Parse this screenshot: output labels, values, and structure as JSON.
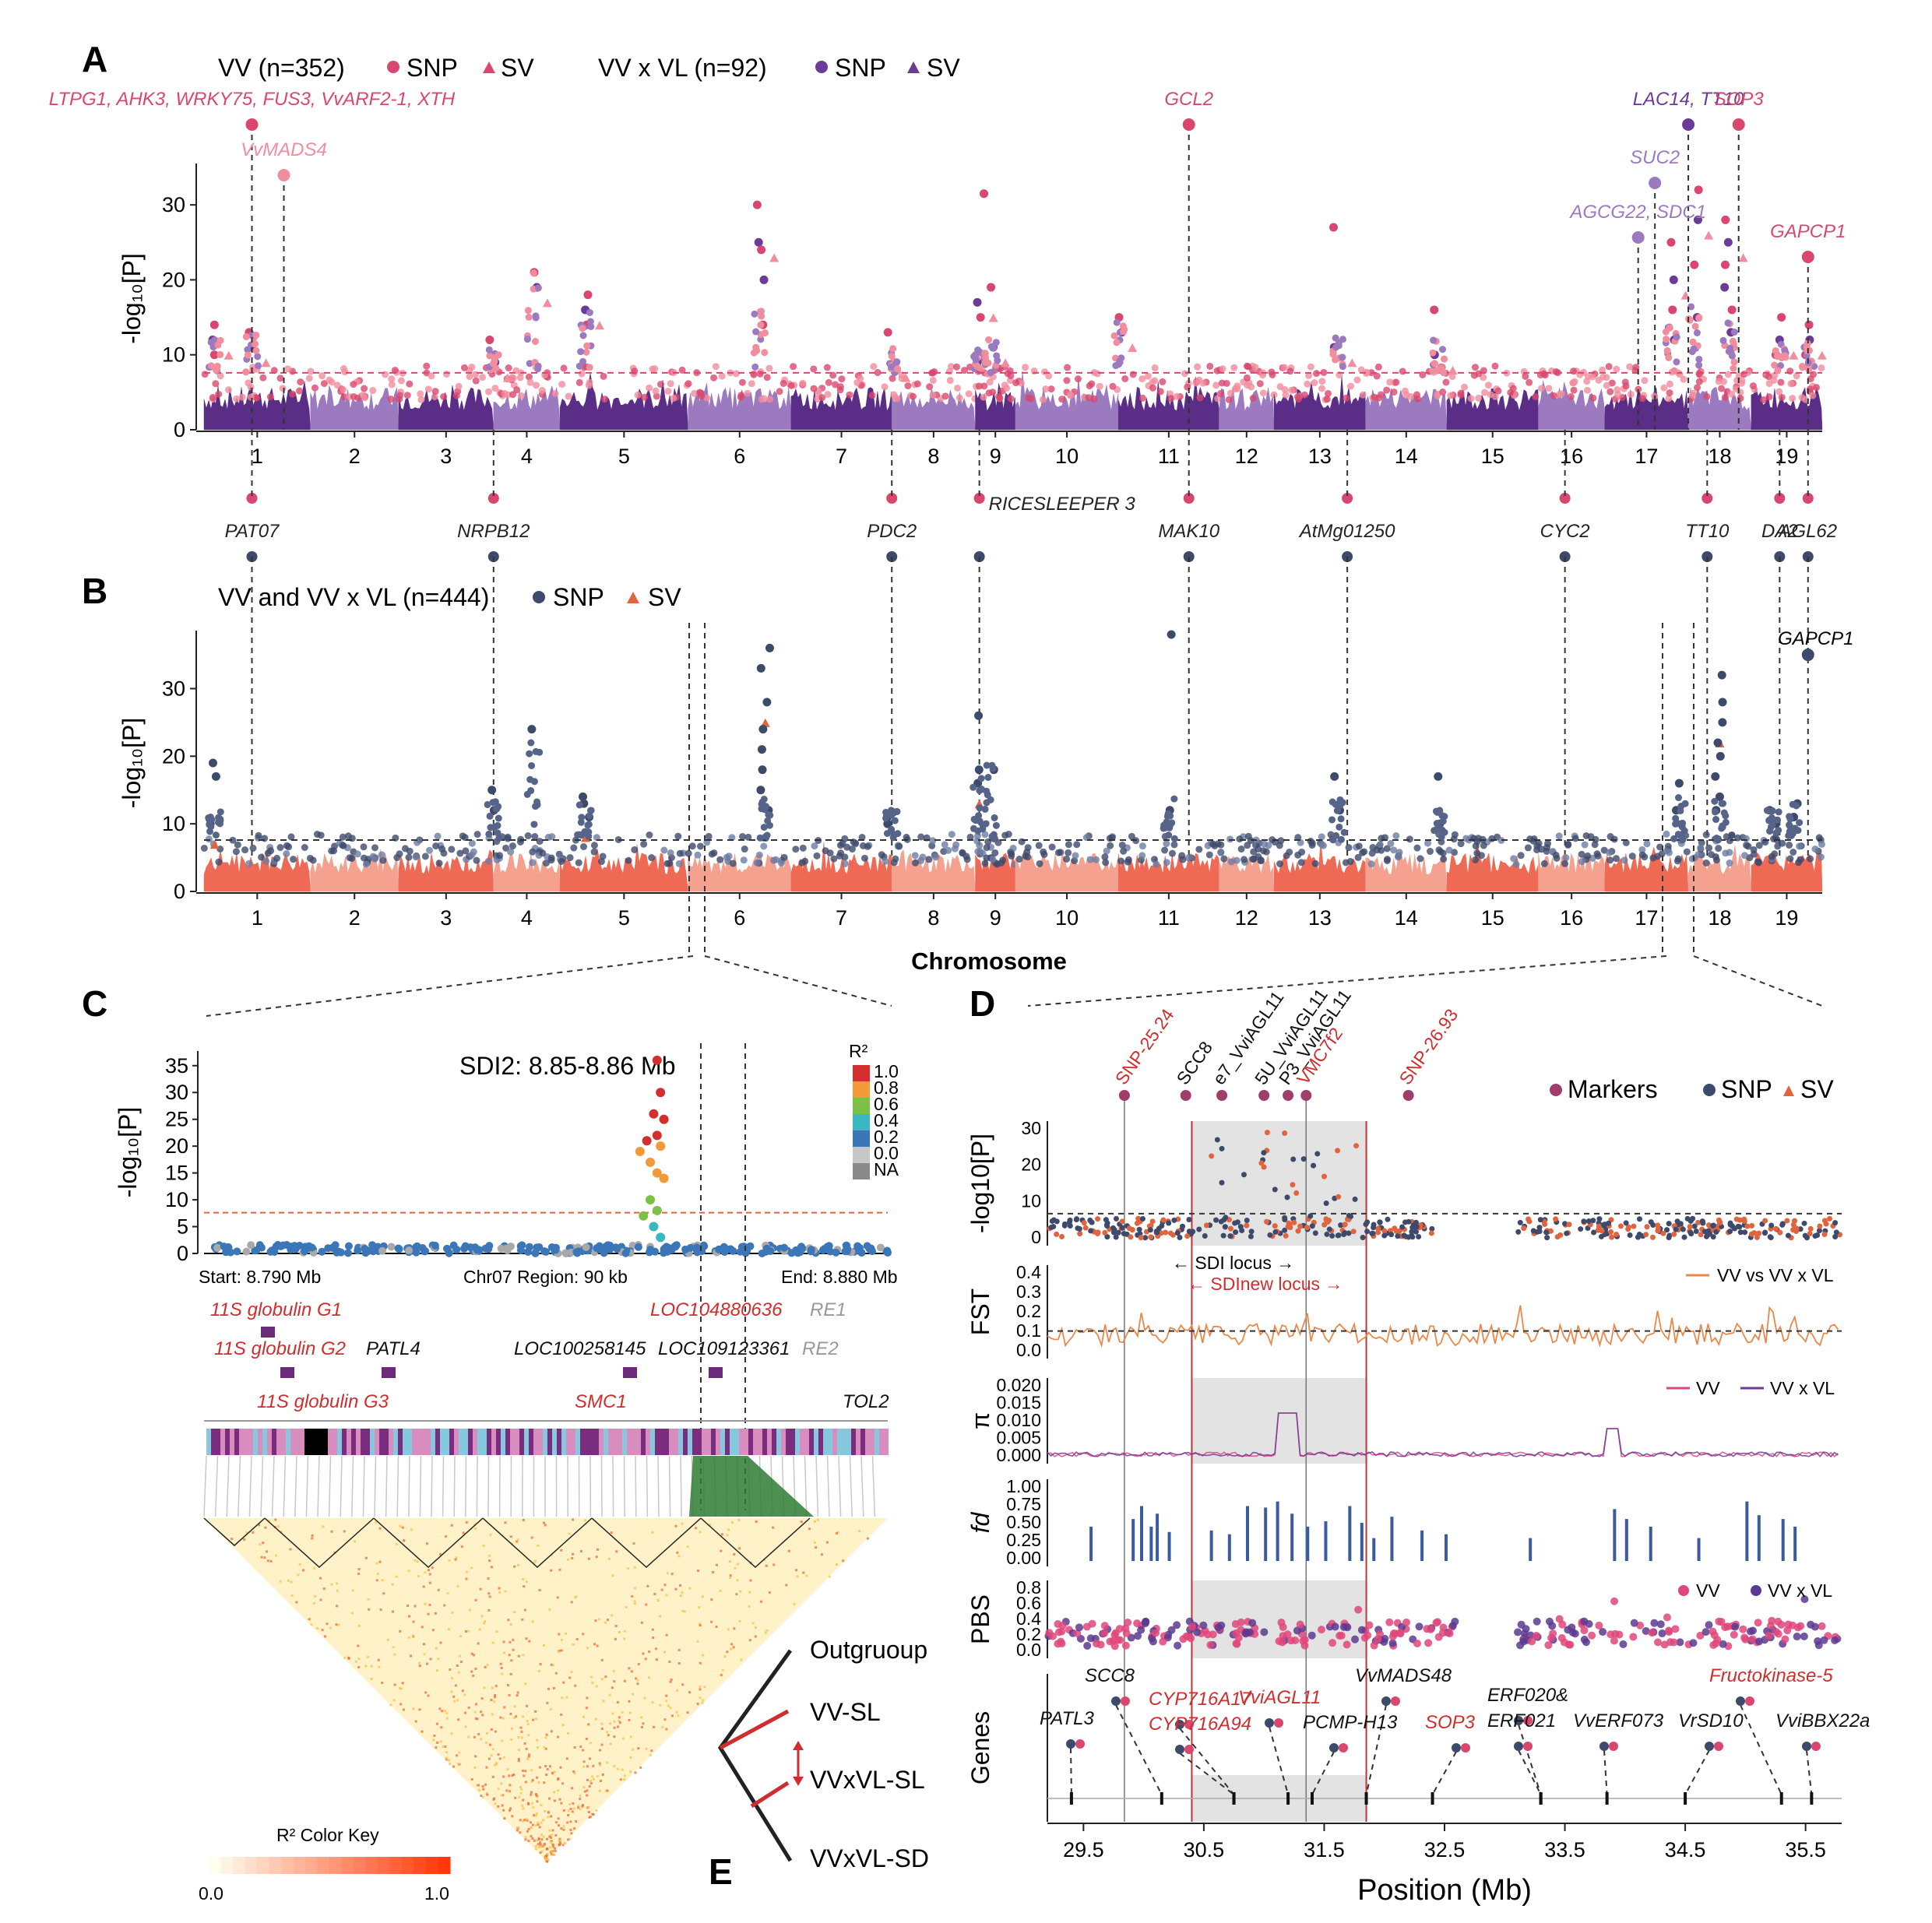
{
  "colors": {
    "vvSnp": "#d9476e",
    "vvSnpLight": "#f18d9d",
    "vlSnp": "#6c3a97",
    "vlLight": "#9c7ac0",
    "vlDark": "#5a2e86",
    "combSnp": "#3d4a6b",
    "combSv": "#e0643e",
    "bandA": "#ef6a55",
    "bandB": "#f4a18f",
    "red": "#d02e2e",
    "gray": "#888888",
    "green": "#2e7d32"
  },
  "chart_data": [
    {
      "panel": "A",
      "type": "scatter",
      "title": "",
      "ylabel": "-log10[P]",
      "ylim": [
        0,
        35
      ],
      "yticks": [
        "0",
        "10",
        "20",
        "30"
      ],
      "xlabel": "",
      "legend": [
        "VV (n=352)",
        "SNP",
        "SV",
        "VV x VL (n=92)",
        "SNP",
        "SV"
      ],
      "chromosomes": [
        "1",
        "2",
        "3",
        "4",
        "5",
        "6",
        "7",
        "8",
        "9",
        "10",
        "11",
        "12",
        "13",
        "14",
        "15",
        "16",
        "17",
        "18",
        "19"
      ],
      "threshold": 7.6,
      "annotations_top": [
        {
          "label": "LTPG1, AHK3, WRKY75, FUS3, VvARF2-1, XTH",
          "chr": 1.45,
          "y": 33,
          "color": "vvSnp"
        },
        {
          "label": "VvMADS4",
          "chr": 1.75,
          "y": 33.5,
          "color": "vvSnpLight"
        },
        {
          "label": "GCL2",
          "chr": 11.7,
          "y": 33,
          "color": "vvSnp"
        },
        {
          "label": "LAC14, TT10",
          "chr": 18.0,
          "y": 33,
          "color": "vlSnp"
        },
        {
          "label": "SOP3",
          "chr": 18.8,
          "y": 33,
          "color": "vvSnp"
        },
        {
          "label": "SUC2",
          "chr": 17.6,
          "y": 31.5,
          "color": "vlLight"
        },
        {
          "label": "AGCG22, SDC1",
          "chr": 17.4,
          "y": 25,
          "color": "vlLight"
        },
        {
          "label": "GAPCP1",
          "chr": 19.8,
          "y": 22.5,
          "color": "vvSnp"
        }
      ],
      "annotations_bottom": [
        {
          "label": "PAT07",
          "chr": 1.45
        },
        {
          "label": "NRPB12",
          "chr": 4.0
        },
        {
          "label": "PDC2",
          "chr": 8.0
        },
        {
          "label": "RICESLEEPER 3",
          "chr": 9.1
        },
        {
          "label": "MAK10",
          "chr": 11.7
        },
        {
          "label": "AtMg01250",
          "chr": 13.8
        },
        {
          "label": "CYC2",
          "chr": 16.4
        },
        {
          "label": "TT10",
          "chr": 18.3
        },
        {
          "label": "DA2",
          "chr": 19.4
        },
        {
          "label": "AGL62",
          "chr": 19.8
        }
      ],
      "peaks": [
        {
          "chr": 1.1,
          "values": [
            14,
            12,
            10
          ]
        },
        {
          "chr": 1.45,
          "values": [
            13,
            11
          ]
        },
        {
          "chr": 4.0,
          "values": [
            12,
            9
          ]
        },
        {
          "chr": 4.6,
          "values": [
            21,
            19
          ]
        },
        {
          "chr": 5.2,
          "values": [
            18,
            16,
            14
          ]
        },
        {
          "chr": 6.7,
          "values": [
            30,
            25,
            24,
            20,
            14
          ]
        },
        {
          "chr": 8.0,
          "values": [
            13,
            9
          ]
        },
        {
          "chr": 9.1,
          "values": [
            31.5,
            17,
            15,
            9
          ]
        },
        {
          "chr": 9.4,
          "values": [
            19,
            11
          ]
        },
        {
          "chr": 11.0,
          "values": [
            15,
            13
          ]
        },
        {
          "chr": 13.7,
          "values": [
            27,
            11
          ]
        },
        {
          "chr": 14.9,
          "values": [
            16,
            10
          ]
        },
        {
          "chr": 17.8,
          "values": [
            25,
            20,
            16,
            12
          ]
        },
        {
          "chr": 18.1,
          "values": [
            32,
            28,
            22,
            15
          ]
        },
        {
          "chr": 18.65,
          "values": [
            28,
            25,
            22,
            19,
            16,
            13
          ]
        },
        {
          "chr": 19.4,
          "values": [
            15,
            12,
            10
          ]
        },
        {
          "chr": 19.8,
          "values": [
            14,
            12,
            10
          ]
        }
      ]
    },
    {
      "panel": "B",
      "type": "scatter",
      "ylabel": "-log10[P]",
      "ylim": [
        0,
        38
      ],
      "yticks": [
        "0",
        "10",
        "20",
        "30"
      ],
      "xlabel": "Chromosome",
      "legend": [
        "VV and VV x VL (n=444)",
        "SNP",
        "SV"
      ],
      "chromosomes": [
        "1",
        "2",
        "3",
        "4",
        "5",
        "6",
        "7",
        "8",
        "9",
        "10",
        "11",
        "12",
        "13",
        "14",
        "15",
        "16",
        "17",
        "18",
        "19"
      ],
      "threshold": 7.6,
      "annotation": {
        "label": "GAPCP1",
        "chr": 19.8,
        "y": 35
      },
      "peaks": [
        {
          "chr": 1.1,
          "values": [
            19,
            17,
            10
          ]
        },
        {
          "chr": 4.0,
          "values": [
            15,
            12
          ]
        },
        {
          "chr": 4.6,
          "values": [
            24
          ]
        },
        {
          "chr": 5.2,
          "values": [
            14,
            13,
            11
          ]
        },
        {
          "chr": 6.75,
          "values": [
            36,
            33,
            28,
            24,
            21,
            18,
            15,
            12
          ]
        },
        {
          "chr": 8.0,
          "values": [
            11,
            10
          ]
        },
        {
          "chr": 9.1,
          "values": [
            26,
            18,
            16
          ]
        },
        {
          "chr": 9.4,
          "values": [
            18
          ]
        },
        {
          "chr": 11.5,
          "values": [
            38,
            12
          ]
        },
        {
          "chr": 13.7,
          "values": [
            17,
            12
          ]
        },
        {
          "chr": 14.9,
          "values": [
            17,
            10
          ]
        },
        {
          "chr": 17.9,
          "values": [
            16,
            12
          ]
        },
        {
          "chr": 18.5,
          "values": [
            32,
            28,
            25,
            22,
            20,
            17,
            14,
            12
          ]
        },
        {
          "chr": 19.3,
          "values": [
            12,
            10
          ]
        },
        {
          "chr": 19.6,
          "values": [
            13,
            11
          ]
        }
      ]
    },
    {
      "panel": "C",
      "type": "scatter",
      "title": "SDI2: 8.85-8.86 Mb",
      "ylabel": "-log10[P]",
      "ylim": [
        0,
        37
      ],
      "yticks": [
        "0",
        "5",
        "10",
        "15",
        "20",
        "25",
        "30",
        "35"
      ],
      "threshold": 7.6,
      "region": {
        "start": "Start: 8.790 Mb",
        "mid": "Chr07 Region: 90 kb",
        "end": "End: 8.880 Mb"
      },
      "r2_legend": {
        "title": "R²",
        "labels": [
          "1.0",
          "0.8",
          "0.6",
          "0.4",
          "0.2",
          "0.0",
          "NA"
        ],
        "colors": [
          "#d32f2f",
          "#f29a38",
          "#7cc046",
          "#3ab7c2",
          "#3b76b8",
          "#c7c7c7",
          "#8a8a8a"
        ]
      },
      "hits": [
        {
          "x": 0.6,
          "y": 36
        },
        {
          "x": 0.605,
          "y": 30
        },
        {
          "x": 0.595,
          "y": 26
        },
        {
          "x": 0.61,
          "y": 25
        },
        {
          "x": 0.6,
          "y": 22
        },
        {
          "x": 0.585,
          "y": 21
        },
        {
          "x": 0.605,
          "y": 20
        },
        {
          "x": 0.575,
          "y": 19
        },
        {
          "x": 0.59,
          "y": 17
        },
        {
          "x": 0.61,
          "y": 14
        },
        {
          "x": 0.6,
          "y": 15
        },
        {
          "x": 0.59,
          "y": 10
        },
        {
          "x": 0.6,
          "y": 8
        },
        {
          "x": 0.58,
          "y": 7
        },
        {
          "x": 0.595,
          "y": 5
        },
        {
          "x": 0.605,
          "y": 3
        }
      ],
      "key": {
        "title": "R² Color Key",
        "min": "0.0",
        "max": "1.0"
      }
    },
    {
      "panel": "D",
      "type": "line",
      "xlabel": "Position (Mb)",
      "xlim": [
        29.2,
        35.8
      ],
      "xticks": [
        "29.5",
        "30.5",
        "31.5",
        "32.5",
        "33.5",
        "34.5",
        "35.5"
      ],
      "xtick_values": [
        29.5,
        30.5,
        31.5,
        32.5,
        33.5,
        34.5,
        35.5
      ],
      "shade": [
        30.4,
        31.85
      ],
      "markers": [
        {
          "label": "SNP-25.24",
          "x": 29.84,
          "color": "red"
        },
        {
          "label": "SCC8",
          "x": 30.35,
          "color": "black"
        },
        {
          "label": "e7_VviAGL11",
          "x": 30.65,
          "color": "black"
        },
        {
          "label": "5U_VviAGL11",
          "x": 31.0,
          "color": "black"
        },
        {
          "label": "P3_VviAGL11",
          "x": 31.2,
          "color": "black"
        },
        {
          "label": "VMC7f2",
          "x": 31.35,
          "color": "red"
        },
        {
          "label": "SNP-26.93",
          "x": 32.2,
          "color": "red"
        }
      ],
      "legend_gwas": [
        "Markers",
        "SNP",
        "SV"
      ],
      "tracks": [
        {
          "name": "gwas",
          "ylabel": "-log10[P]",
          "yticks": [
            "0",
            "10",
            "20",
            "30"
          ],
          "ylim": [
            0,
            35
          ]
        },
        {
          "name": "fst",
          "ylabel": "FST",
          "yticks": [
            "0.0",
            "0.1",
            "0.2",
            "0.3",
            "0.4"
          ],
          "ylim": [
            0,
            0.45
          ],
          "legend": "VV vs VV x VL",
          "threshold": 0.13
        },
        {
          "name": "pi",
          "ylabel": "π",
          "yticks": [
            "0.000",
            "0.005",
            "0.010",
            "0.015",
            "0.020"
          ],
          "ylim": [
            0,
            0.02
          ],
          "legend": [
            "VV",
            "VV x VL"
          ],
          "threshold": 0.001
        },
        {
          "name": "fd",
          "ylabel": "fd",
          "yticks": [
            "0.00",
            "0.25",
            "0.50",
            "0.75",
            "1.00"
          ],
          "ylim": [
            0,
            1
          ]
        },
        {
          "name": "pbs",
          "ylabel": "PBS",
          "yticks": [
            "0.0",
            "0.2",
            "0.4",
            "0.6",
            "0.8"
          ],
          "ylim": [
            0,
            0.85
          ],
          "legend": [
            "VV",
            "VV x VL"
          ]
        },
        {
          "name": "genes",
          "ylabel": "Genes"
        }
      ],
      "loci": {
        "sdi": "SDI locus",
        "sdinew": "← SDInew locus →"
      },
      "fd_bars": [
        {
          "x": 29.55,
          "h": 0.45
        },
        {
          "x": 29.9,
          "h": 0.55
        },
        {
          "x": 29.97,
          "h": 0.72
        },
        {
          "x": 30.05,
          "h": 0.45
        },
        {
          "x": 30.1,
          "h": 0.62
        },
        {
          "x": 30.2,
          "h": 0.38
        },
        {
          "x": 30.55,
          "h": 0.4
        },
        {
          "x": 30.7,
          "h": 0.35
        },
        {
          "x": 30.85,
          "h": 0.72
        },
        {
          "x": 31.0,
          "h": 0.7
        },
        {
          "x": 31.1,
          "h": 0.78
        },
        {
          "x": 31.22,
          "h": 0.62
        },
        {
          "x": 31.35,
          "h": 0.45
        },
        {
          "x": 31.5,
          "h": 0.52
        },
        {
          "x": 31.7,
          "h": 0.72
        },
        {
          "x": 31.8,
          "h": 0.5
        },
        {
          "x": 31.9,
          "h": 0.3
        },
        {
          "x": 32.05,
          "h": 0.58
        },
        {
          "x": 32.3,
          "h": 0.4
        },
        {
          "x": 32.5,
          "h": 0.35
        },
        {
          "x": 33.2,
          "h": 0.3
        },
        {
          "x": 33.9,
          "h": 0.68
        },
        {
          "x": 34.0,
          "h": 0.55
        },
        {
          "x": 34.2,
          "h": 0.45
        },
        {
          "x": 34.6,
          "h": 0.3
        },
        {
          "x": 35.0,
          "h": 0.78
        },
        {
          "x": 35.1,
          "h": 0.6
        },
        {
          "x": 35.3,
          "h": 0.55
        },
        {
          "x": 35.4,
          "h": 0.45
        }
      ],
      "genes": [
        {
          "label": "SCC8",
          "x": 30.15,
          "color": "black"
        },
        {
          "label": "PATL3",
          "x": 29.4,
          "color": "black"
        },
        {
          "label": "CYP716A17",
          "x": 30.75,
          "color": "red"
        },
        {
          "label": "CYP716A94",
          "x": 30.75,
          "color": "red"
        },
        {
          "label": "VviAGL11",
          "x": 31.2,
          "color": "red"
        },
        {
          "label": "VvMADS48",
          "x": 31.85,
          "color": "black"
        },
        {
          "label": "PCMP-H13",
          "x": 31.4,
          "color": "black"
        },
        {
          "label": "SOP3",
          "x": 32.4,
          "color": "red"
        },
        {
          "label": "ERF020&",
          "x": 33.3,
          "color": "black"
        },
        {
          "label": "ERF021",
          "x": 33.3,
          "color": "black"
        },
        {
          "label": "VvERF073",
          "x": 33.85,
          "color": "black"
        },
        {
          "label": "VrSD10",
          "x": 34.5,
          "color": "black"
        },
        {
          "label": "Fructokinase-5",
          "x": 35.3,
          "color": "red"
        },
        {
          "label": "VviBBX22a",
          "x": 35.55,
          "color": "black"
        }
      ]
    },
    {
      "panel": "E",
      "type": "diagram",
      "leaves": [
        "Outgruoup",
        "VV-SL",
        "VVxVL-SL",
        "VVxVL-SD"
      ]
    }
  ],
  "labels": {
    "A": "A",
    "B": "B",
    "C": "C",
    "D": "D",
    "E": "E"
  },
  "genes_c": [
    "11S globulin G1",
    "11S globulin G2",
    "PATL4",
    "11S globulin G3",
    "LOC104880636",
    "RE1",
    "LOC100258145",
    "LOC109123361",
    "RE2",
    "SMC1",
    "TOL2"
  ]
}
